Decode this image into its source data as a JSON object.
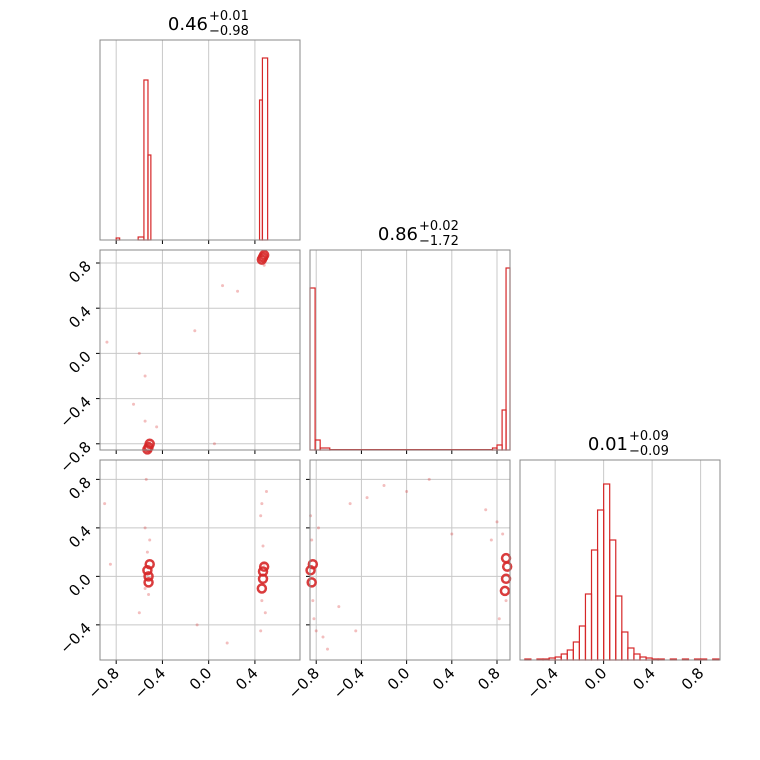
{
  "chart_data": [
    {
      "type": "histogram",
      "title": {
        "value": "0.46",
        "plus": "+0.01",
        "minus": "−0.98"
      },
      "color": "#d62728",
      "bins": [
        -0.94,
        -0.8,
        -0.77,
        -0.61,
        -0.56,
        -0.525,
        -0.5,
        0.44,
        0.465,
        0.51,
        0.79
      ],
      "counts": [
        0,
        0.01,
        0,
        0.015,
        0.8,
        0.425,
        0,
        0.7,
        0.91,
        0
      ],
      "xlim": [
        -0.94,
        0.79
      ],
      "ylim": [
        0,
        1
      ],
      "xticks": [
        {
          "value": -0.8,
          "label": "−0.8"
        },
        {
          "value": -0.4,
          "label": "−0.4"
        },
        {
          "value": 0,
          "label": "0.0"
        },
        0.4
      ],
      "grid": true,
      "xtick_labels": false
    },
    {
      "type": "scatter",
      "color": "#d62728",
      "xlim": [
        -0.94,
        0.79
      ],
      "ylim": [
        -0.855,
        0.915
      ],
      "xticks": [
        {
          "value": -0.8,
          "label": "−0.8"
        },
        {
          "value": -0.4,
          "label": "−0.4"
        },
        {
          "value": 0,
          "label": "0.0"
        },
        0.4
      ],
      "yticks": [
        {
          "value": -0.8,
          "label": "−0.8"
        },
        {
          "value": -0.4,
          "label": "−0.4"
        },
        {
          "value": 0,
          "label": "0.0"
        },
        0.4,
        0.8
      ],
      "grid": true,
      "xtick_labels": false,
      "ytick_labels": true,
      "series": [
        {
          "x": [
            0.47,
            0.46,
            0.48,
            0.45,
            -0.53,
            -0.52,
            -0.51,
            -0.55,
            0.12,
            -0.12,
            -0.45,
            -0.88,
            -0.65,
            0.05,
            -0.55,
            0.25,
            -0.6
          ],
          "y": [
            0.86,
            0.82,
            0.78,
            0.88,
            -0.82,
            -0.85,
            -0.78,
            -0.6,
            0.6,
            0.2,
            -0.65,
            0.1,
            -0.45,
            -0.8,
            -0.2,
            0.55,
            0.0
          ]
        },
        {
          "x": [
            0.47,
            0.48,
            0.46,
            -0.52,
            -0.53,
            -0.51
          ],
          "y": [
            0.85,
            0.87,
            0.83,
            -0.83,
            -0.85,
            -0.8
          ]
        }
      ]
    },
    {
      "type": "scatter",
      "color": "#d62728",
      "xlim": [
        -0.94,
        0.79
      ],
      "ylim": [
        -0.69,
        0.96
      ],
      "xticks": [
        {
          "value": -0.8,
          "label": "−0.8"
        },
        {
          "value": -0.4,
          "label": "−0.4"
        },
        {
          "value": 0,
          "label": "0.0"
        },
        0.4
      ],
      "yticks": [
        {
          "value": -0.4,
          "label": "−0.4"
        },
        {
          "value": 0,
          "label": "0.0"
        },
        0.4,
        0.8
      ],
      "grid": true,
      "xtick_labels": true,
      "ytick_labels": true,
      "series": [
        {
          "x": [
            -0.53,
            -0.52,
            -0.54,
            -0.51,
            -0.55,
            0.47,
            0.46,
            0.48,
            0.45,
            0.49,
            -0.9,
            -0.85,
            -0.55,
            0.5,
            -0.1,
            0.45,
            0.16,
            -0.6,
            0.46
          ],
          "y": [
            0.2,
            -0.15,
            0.8,
            0.3,
            -0.1,
            0.25,
            -0.2,
            0.1,
            0.5,
            -0.3,
            0.6,
            0.1,
            0.4,
            0.7,
            -0.4,
            -0.45,
            -0.55,
            -0.3,
            0.6
          ]
        },
        {
          "x": [
            -0.53,
            -0.52,
            -0.51,
            -0.52,
            0.47,
            0.48,
            0.46,
            0.47
          ],
          "y": [
            0.05,
            0.0,
            0.1,
            -0.05,
            -0.02,
            0.08,
            -0.1,
            0.04
          ]
        }
      ]
    },
    {
      "type": "histogram",
      "title": {
        "value": "0.86",
        "plus": "+0.02",
        "minus": "−1.72"
      },
      "color": "#d62728",
      "bins": [
        -0.855,
        -0.81,
        -0.765,
        -0.68,
        0.76,
        0.8,
        0.845,
        0.88,
        0.915
      ],
      "counts": [
        0.81,
        0.05,
        0.01,
        0.002,
        0.01,
        0.025,
        0.2,
        0.91
      ],
      "xlim": [
        -0.855,
        0.915
      ],
      "ylim": [
        0,
        1
      ],
      "xticks": [
        {
          "value": -0.8,
          "label": "−0.8"
        },
        {
          "value": -0.4,
          "label": "−0.4"
        },
        {
          "value": 0,
          "label": "0.0"
        },
        0.4,
        0.8
      ],
      "grid": true,
      "xtick_labels": false
    },
    {
      "type": "scatter",
      "color": "#d62728",
      "xlim": [
        -0.855,
        0.915
      ],
      "ylim": [
        -0.69,
        0.96
      ],
      "xticks": [
        {
          "value": -0.8,
          "label": "−0.8"
        },
        {
          "value": -0.4,
          "label": "−0.4"
        },
        {
          "value": 0,
          "label": "0.0"
        },
        0.4,
        0.8
      ],
      "yticks": [
        {
          "value": -0.4,
          "label": "−0.4"
        },
        {
          "value": 0,
          "label": "0.0"
        },
        0.4,
        0.8
      ],
      "grid": true,
      "xtick_labels": true,
      "ytick_labels": false,
      "series": [
        {
          "x": [
            -0.84,
            -0.83,
            -0.82,
            -0.8,
            -0.78,
            -0.74,
            -0.7,
            -0.85,
            -0.6,
            -0.5,
            -0.45,
            0.85,
            0.8,
            0.75,
            0.7,
            0.82,
            0.88,
            -0.2,
            0.0,
            0.2,
            -0.35,
            0.4
          ],
          "y": [
            0.3,
            -0.2,
            -0.35,
            -0.45,
            0.4,
            -0.5,
            -0.6,
            0.5,
            -0.25,
            0.6,
            -0.45,
            0.35,
            0.45,
            0.3,
            0.55,
            -0.35,
            -0.2,
            0.75,
            0.7,
            0.8,
            0.65,
            0.35
          ]
        },
        {
          "x": [
            -0.85,
            -0.84,
            -0.83,
            0.88,
            0.89,
            0.87,
            0.88
          ],
          "y": [
            0.05,
            -0.05,
            0.1,
            -0.02,
            0.08,
            -0.12,
            0.15
          ]
        }
      ]
    },
    {
      "type": "histogram",
      "title": {
        "value": "0.01",
        "plus": "+0.09",
        "minus": "−0.09"
      },
      "color": "#d62728",
      "bins": [
        -0.65,
        -0.6,
        -0.55,
        -0.5,
        -0.45,
        -0.4,
        -0.35,
        -0.3,
        -0.25,
        -0.2,
        -0.15,
        -0.1,
        -0.05,
        0.0,
        0.05,
        0.1,
        0.15,
        0.2,
        0.25,
        0.3,
        0.35,
        0.4,
        0.45,
        0.5,
        0.55,
        0.6,
        0.65,
        0.7,
        0.75,
        0.8,
        0.85,
        0.9,
        0.95
      ],
      "counts": [
        0.005,
        0,
        0.005,
        0.005,
        0.01,
        0.015,
        0.03,
        0.05,
        0.09,
        0.17,
        0.33,
        0.55,
        0.75,
        0.88,
        0.6,
        0.32,
        0.14,
        0.06,
        0.03,
        0.015,
        0.01,
        0.005,
        0.005,
        0,
        0.005,
        0,
        0.005,
        0,
        0.005,
        0.005,
        0,
        0.005
      ],
      "xlim": [
        -0.69,
        0.96
      ],
      "ylim": [
        0,
        1
      ],
      "xticks": [
        {
          "value": -0.4,
          "label": "−0.4"
        },
        {
          "value": 0,
          "label": "0.0"
        },
        0.4,
        0.8
      ],
      "grid": true,
      "xtick_labels": true
    }
  ]
}
